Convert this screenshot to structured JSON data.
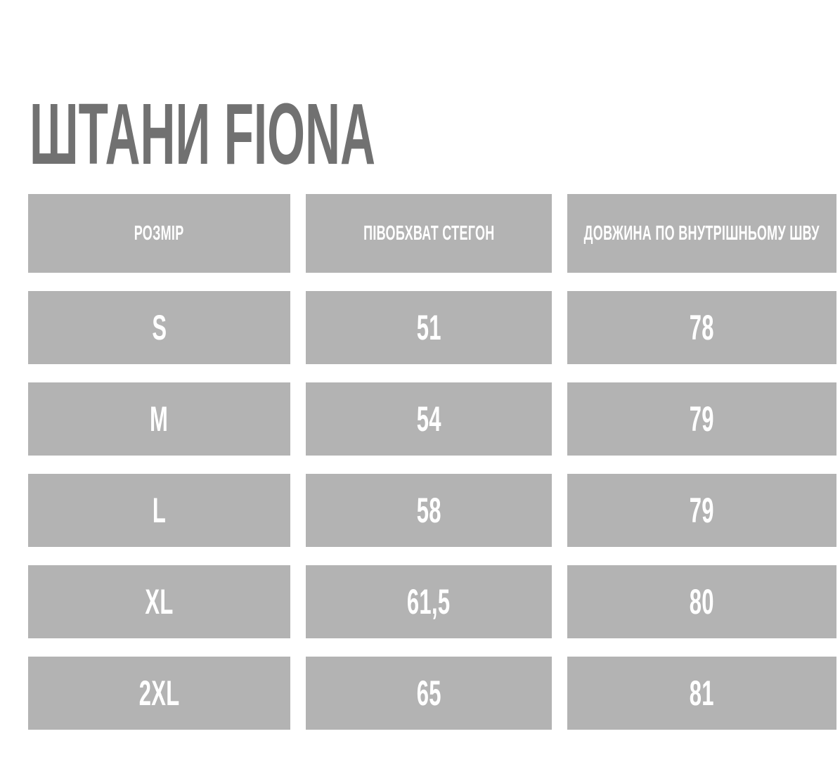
{
  "title": "ШТАНИ FIONA",
  "colors": {
    "page_background": "#ffffff",
    "title_text": "#717171",
    "cell_background": "#b3b3b3",
    "cell_text": "#ffffff"
  },
  "table": {
    "columns": {
      "size": "РОЗМІР",
      "hips_half": "ПІВОБХВАТ СТЕГОН",
      "inseam": "ДОВЖИНА ПО ВНУТРІШНЬОМУ ШВУ"
    },
    "rows": [
      {
        "size": "S",
        "hips_half": "51",
        "inseam": "78"
      },
      {
        "size": "M",
        "hips_half": "54",
        "inseam": "79"
      },
      {
        "size": "L",
        "hips_half": "58",
        "inseam": "79"
      },
      {
        "size": "XL",
        "hips_half": "61,5",
        "inseam": "80"
      },
      {
        "size": "2XL",
        "hips_half": "65",
        "inseam": "81"
      }
    ]
  }
}
